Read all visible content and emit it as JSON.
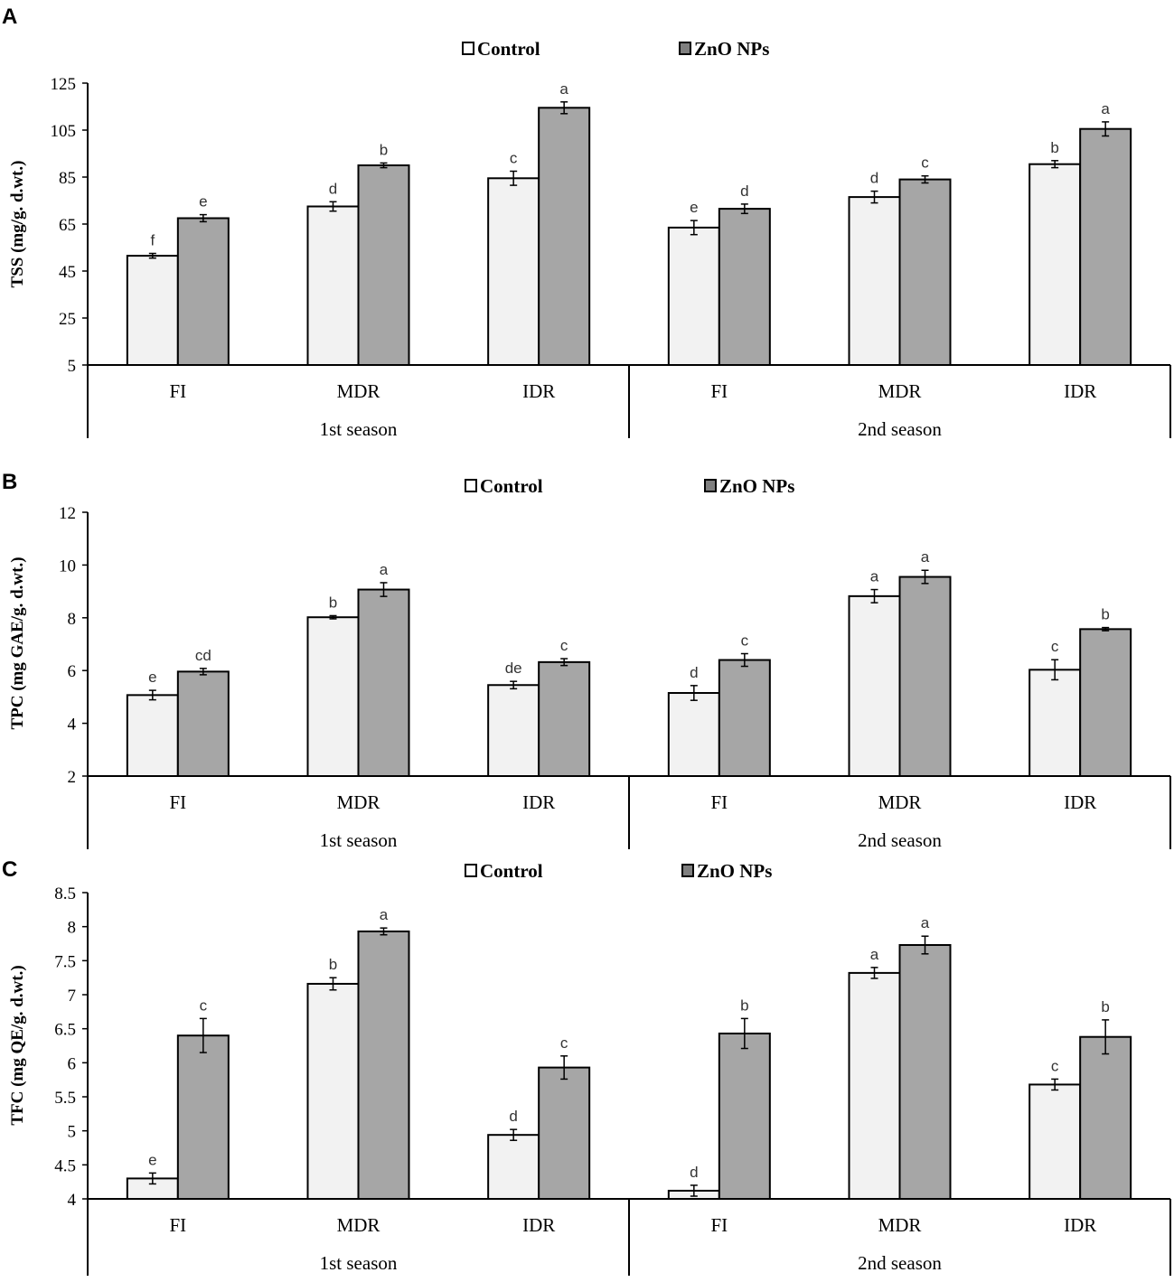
{
  "legend": {
    "control": "Control",
    "zno": "ZnO NPs"
  },
  "colors": {
    "control": "#f2f2f2",
    "zno": "#a6a6a6",
    "stroke": "#000000"
  },
  "chart_data": [
    {
      "panel": "A",
      "type": "bar",
      "ylabel": "TSS (mg/g. d.wt.)",
      "ylim": [
        5,
        125
      ],
      "yticks": [
        "5",
        "25",
        "45",
        "65",
        "85",
        "105",
        "125"
      ],
      "categories": [
        "FI",
        "MDR",
        "IDR",
        "FI",
        "MDR",
        "IDR"
      ],
      "groups": [
        "1st season",
        "2nd season"
      ],
      "series": [
        {
          "name": "Control",
          "values": [
            51.5,
            72.5,
            84.5,
            63.5,
            76.5,
            90.5
          ],
          "errors": [
            1,
            2,
            3,
            3,
            2.5,
            1.5
          ],
          "labels": [
            "f",
            "d",
            "c",
            "e",
            "d",
            "b"
          ]
        },
        {
          "name": "ZnO NPs",
          "values": [
            67.5,
            90,
            114.5,
            71.5,
            84,
            105.5
          ],
          "errors": [
            1.5,
            1,
            2.5,
            2,
            1.5,
            3
          ],
          "labels": [
            "e",
            "b",
            "a",
            "d",
            "c",
            "a"
          ]
        }
      ]
    },
    {
      "panel": "B",
      "type": "bar",
      "ylabel": "TPC (mg GAE/g. d.wt.)",
      "ylim": [
        2,
        12
      ],
      "yticks": [
        "2",
        "4",
        "6",
        "8",
        "10",
        "12"
      ],
      "categories": [
        "FI",
        "MDR",
        "IDR",
        "FI",
        "MDR",
        "IDR"
      ],
      "groups": [
        "1st season",
        "2nd season"
      ],
      "series": [
        {
          "name": "Control",
          "values": [
            5.07,
            8.02,
            5.45,
            5.15,
            8.82,
            6.03
          ],
          "errors": [
            0.18,
            0.06,
            0.14,
            0.28,
            0.25,
            0.38
          ],
          "labels": [
            "e",
            "b",
            "de",
            "d",
            "a",
            "c"
          ]
        },
        {
          "name": "ZnO NPs",
          "values": [
            5.96,
            9.07,
            6.32,
            6.4,
            9.55,
            7.57
          ],
          "errors": [
            0.12,
            0.26,
            0.13,
            0.24,
            0.25,
            0.06
          ],
          "labels": [
            "cd",
            "a",
            "c",
            "c",
            "a",
            "b"
          ]
        }
      ]
    },
    {
      "panel": "C",
      "type": "bar",
      "ylabel": "TFC (mg QE/g. d.wt.)",
      "ylim": [
        4,
        8.5
      ],
      "yticks": [
        "4",
        "4.5",
        "5",
        "5.5",
        "6",
        "6.5",
        "7",
        "7.5",
        "8",
        "8.5"
      ],
      "categories": [
        "FI",
        "MDR",
        "IDR",
        "FI",
        "MDR",
        "IDR"
      ],
      "groups": [
        "1st season",
        "2nd season"
      ],
      "series": [
        {
          "name": "Control",
          "values": [
            4.3,
            7.16,
            4.94,
            4.12,
            7.32,
            5.68
          ],
          "errors": [
            0.08,
            0.09,
            0.08,
            0.08,
            0.08,
            0.08
          ],
          "labels": [
            "e",
            "b",
            "d",
            "d",
            "a",
            "c"
          ]
        },
        {
          "name": "ZnO NPs",
          "values": [
            6.4,
            7.93,
            5.93,
            6.43,
            7.73,
            6.38
          ],
          "errors": [
            0.25,
            0.05,
            0.17,
            0.22,
            0.13,
            0.25
          ],
          "labels": [
            "c",
            "a",
            "c",
            "b",
            "a",
            "b"
          ]
        }
      ]
    }
  ]
}
